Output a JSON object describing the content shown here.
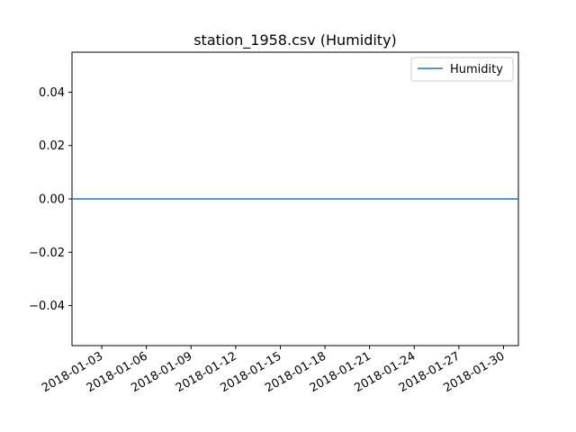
{
  "chart_data": {
    "type": "line",
    "title": "station_1958.csv (Humidity)",
    "xlabel": "",
    "ylabel": "",
    "x_type": "date",
    "xlim": [
      "2018-01-01",
      "2018-01-31"
    ],
    "ylim": [
      -0.055,
      0.055
    ],
    "x_ticks": [
      "2018-01-03",
      "2018-01-06",
      "2018-01-09",
      "2018-01-12",
      "2018-01-15",
      "2018-01-18",
      "2018-01-21",
      "2018-01-24",
      "2018-01-27",
      "2018-01-30"
    ],
    "y_ticks": [
      0.04,
      0.02,
      0.0,
      -0.02,
      -0.04
    ],
    "y_tick_labels": [
      "0.04",
      "0.02",
      "0.00",
      "−0.02",
      "−0.04"
    ],
    "grid": false,
    "legend": {
      "position": "top-right",
      "entries": [
        "Humidity"
      ]
    },
    "series": [
      {
        "name": "Humidity",
        "color": "#1f77b4",
        "x": [
          "2018-01-01",
          "2018-01-31"
        ],
        "y": [
          0,
          0
        ]
      }
    ]
  }
}
